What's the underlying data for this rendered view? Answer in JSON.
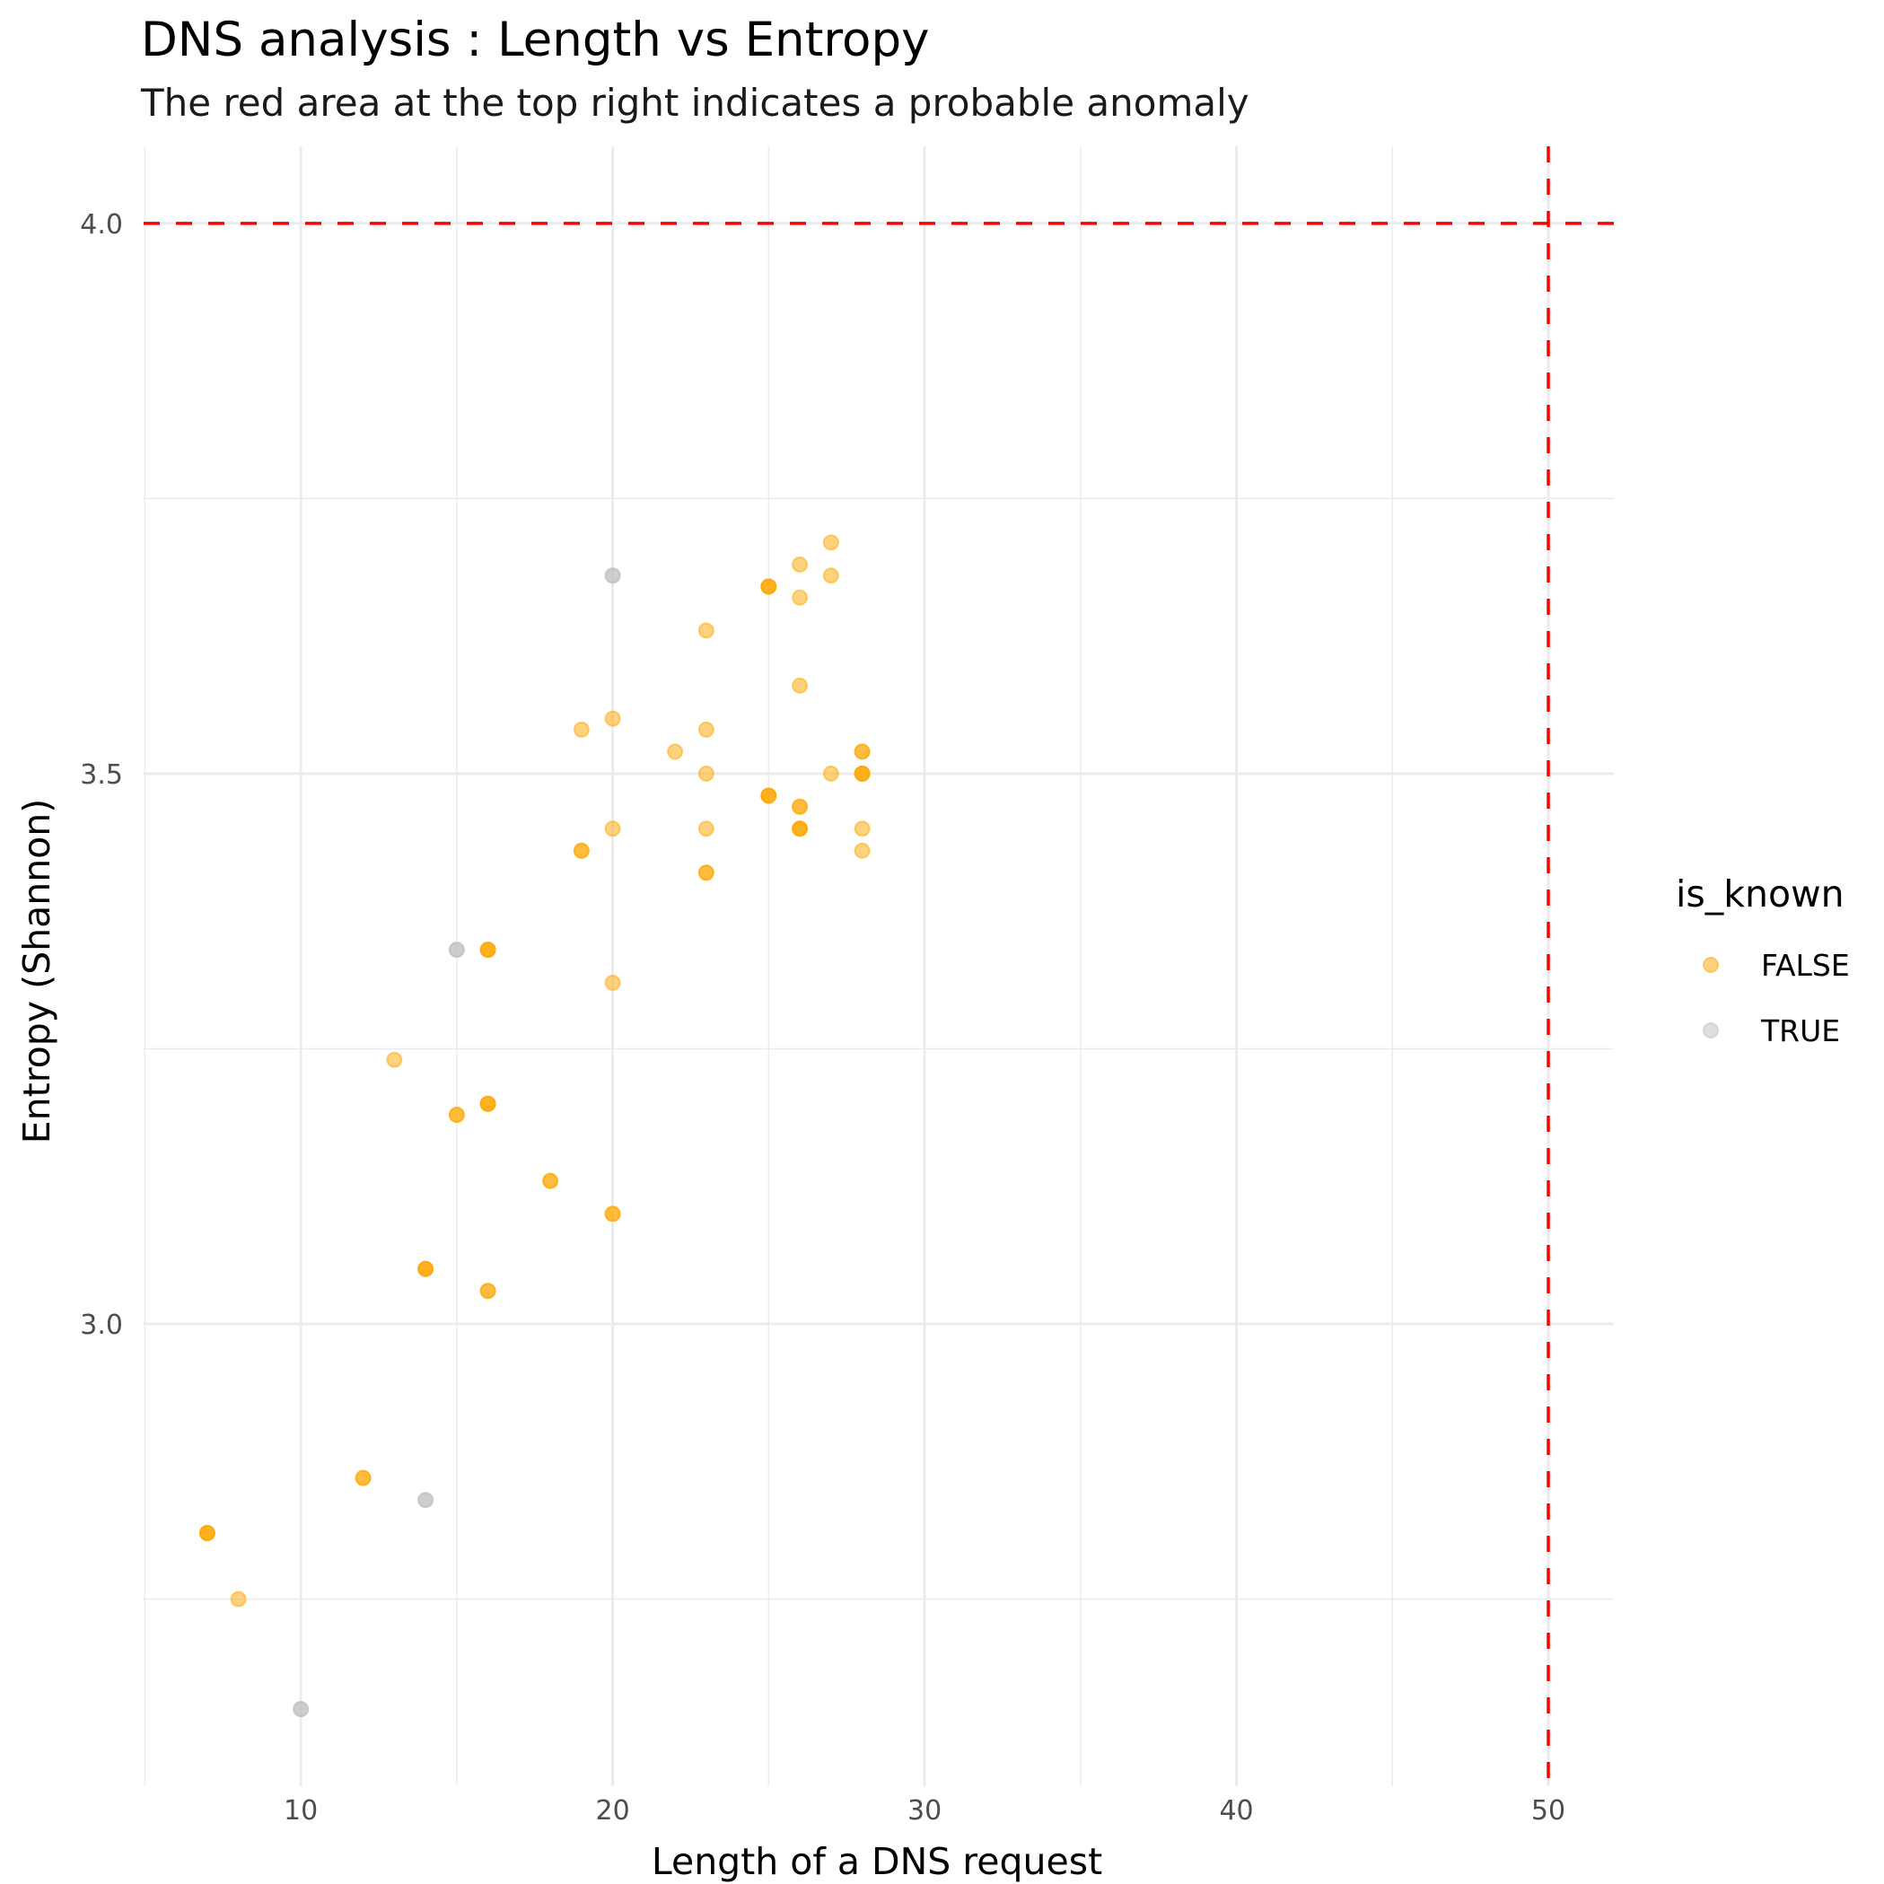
{
  "chart_data": {
    "type": "scatter",
    "title": "DNS analysis : Length vs Entropy",
    "subtitle": "The red area at the top right indicates a probable anomaly",
    "xlabel": "Length of a DNS request",
    "ylabel": "Entropy (Shannon)",
    "xlim": [
      4.96,
      52.1
    ],
    "ylim": [
      2.58,
      4.07
    ],
    "x_ticks": [
      10,
      20,
      30,
      40,
      50
    ],
    "x_tick_labels": [
      "10",
      "20",
      "30",
      "40",
      "50"
    ],
    "x_minor": [
      5,
      15,
      25,
      35,
      45
    ],
    "y_ticks": [
      3.0,
      3.5,
      4.0
    ],
    "y_tick_labels": [
      "3.0",
      "3.5",
      "4.0"
    ],
    "y_minor": [
      2.75,
      3.25,
      3.75
    ],
    "grid": true,
    "thresholds": {
      "x": 50,
      "y": 4.0,
      "color": "#ff0000",
      "style": "dashed"
    },
    "legend": {
      "title": "is_known",
      "position": "right",
      "entries": [
        {
          "label": "FALSE",
          "color": "#ffa500"
        },
        {
          "label": "TRUE",
          "color": "#bebebe"
        }
      ]
    },
    "point_alpha": 0.5,
    "series": [
      {
        "name": "FALSE",
        "color": "#ffa500",
        "points": [
          [
            7,
            2.81
          ],
          [
            7,
            2.81
          ],
          [
            7,
            2.81
          ],
          [
            8,
            2.75
          ],
          [
            12,
            2.86
          ],
          [
            12,
            2.86
          ],
          [
            13,
            3.24
          ],
          [
            14,
            3.05
          ],
          [
            14,
            3.05
          ],
          [
            14,
            3.05
          ],
          [
            15,
            3.19
          ],
          [
            15,
            3.19
          ],
          [
            16,
            3.34
          ],
          [
            16,
            3.34
          ],
          [
            16,
            3.34
          ],
          [
            16,
            3.2
          ],
          [
            16,
            3.2
          ],
          [
            16,
            3.2
          ],
          [
            16,
            3.03
          ],
          [
            16,
            3.03
          ],
          [
            18,
            3.13
          ],
          [
            18,
            3.13
          ],
          [
            20,
            3.1
          ],
          [
            20,
            3.1
          ],
          [
            20,
            3.31
          ],
          [
            19,
            3.43
          ],
          [
            19,
            3.43
          ],
          [
            19,
            3.54
          ],
          [
            20,
            3.55
          ],
          [
            20,
            3.45
          ],
          [
            22,
            3.52
          ],
          [
            23,
            3.63
          ],
          [
            23,
            3.54
          ],
          [
            23,
            3.5
          ],
          [
            23,
            3.45
          ],
          [
            23,
            3.41
          ],
          [
            23,
            3.41
          ],
          [
            25,
            3.67
          ],
          [
            25,
            3.67
          ],
          [
            25,
            3.67
          ],
          [
            25,
            3.48
          ],
          [
            25,
            3.48
          ],
          [
            25,
            3.48
          ],
          [
            26,
            3.69
          ],
          [
            26,
            3.66
          ],
          [
            26,
            3.58
          ],
          [
            26,
            3.47
          ],
          [
            26,
            3.47
          ],
          [
            26,
            3.45
          ],
          [
            26,
            3.45
          ],
          [
            26,
            3.45
          ],
          [
            27,
            3.71
          ],
          [
            27,
            3.68
          ],
          [
            27,
            3.5
          ],
          [
            28,
            3.52
          ],
          [
            28,
            3.52
          ],
          [
            28,
            3.5
          ],
          [
            28,
            3.5
          ],
          [
            28,
            3.5
          ],
          [
            28,
            3.45
          ],
          [
            28,
            3.43
          ]
        ]
      },
      {
        "name": "TRUE",
        "color": "#bebebe",
        "points": [
          [
            10,
            2.65
          ],
          [
            10,
            2.65
          ],
          [
            14,
            2.84
          ],
          [
            14,
            2.84
          ],
          [
            15,
            3.34
          ],
          [
            15,
            3.34
          ],
          [
            20,
            3.68
          ],
          [
            20,
            3.68
          ]
        ]
      }
    ]
  }
}
